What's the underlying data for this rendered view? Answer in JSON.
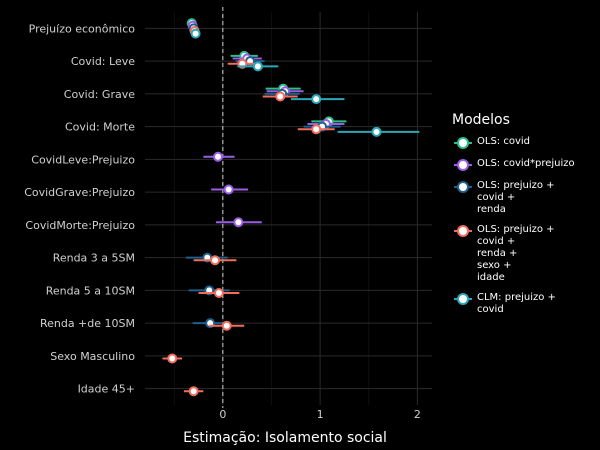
{
  "chart_data": {
    "type": "scatter",
    "subtype": "coefficient-plot",
    "title": "",
    "xlabel": "Estimação: Isolamento social",
    "ylabel": "",
    "xlim": [
      -0.8,
      2.15
    ],
    "xticks": [
      0,
      1,
      2
    ],
    "grid": true,
    "legend_title": "Modelos",
    "legend_position": "right",
    "categories": [
      "Prejuízo econômico",
      "Covid: Leve",
      "Covid: Grave",
      "Covid: Morte",
      "CovidLeve:Prejuizo",
      "CovidGrave:Prejuizo",
      "CovidMorte:Prejuizo",
      "Renda 3 a 5SM",
      "Renda 5 a 10SM",
      "Renda +de 10SM",
      "Sexo Masculino",
      "Idade 45+"
    ],
    "series": [
      {
        "name": "OLS: covid",
        "color": "#2bbf8a",
        "points": [
          {
            "term": "Prejuízo econômico",
            "est": -0.32,
            "lo": -0.36,
            "hi": -0.28
          },
          {
            "term": "Covid: Leve",
            "est": 0.22,
            "lo": 0.08,
            "hi": 0.36
          },
          {
            "term": "Covid: Grave",
            "est": 0.62,
            "lo": 0.44,
            "hi": 0.8
          },
          {
            "term": "Covid: Morte",
            "est": 1.09,
            "lo": 0.91,
            "hi": 1.27
          }
        ]
      },
      {
        "name": "OLS: covid*prejuizo",
        "color": "#9b5de5",
        "points": [
          {
            "term": "Prejuízo econômico",
            "est": -0.31,
            "lo": -0.35,
            "hi": -0.27
          },
          {
            "term": "Covid: Leve",
            "est": 0.25,
            "lo": 0.1,
            "hi": 0.4
          },
          {
            "term": "Covid: Grave",
            "est": 0.64,
            "lo": 0.45,
            "hi": 0.83
          },
          {
            "term": "Covid: Morte",
            "est": 1.06,
            "lo": 0.87,
            "hi": 1.25
          },
          {
            "term": "CovidLeve:Prejuizo",
            "est": -0.05,
            "lo": -0.2,
            "hi": 0.12
          },
          {
            "term": "CovidGrave:Prejuizo",
            "est": 0.06,
            "lo": -0.12,
            "hi": 0.26
          },
          {
            "term": "CovidMorte:Prejuizo",
            "est": 0.16,
            "lo": -0.07,
            "hi": 0.4
          }
        ]
      },
      {
        "name": "OLS: prejuizo +\ncovid +\nrenda",
        "color": "#1e5f8e",
        "points": [
          {
            "term": "Prejuízo econômico",
            "est": -0.3,
            "lo": -0.34,
            "hi": -0.26
          },
          {
            "term": "Covid: Leve",
            "est": 0.28,
            "lo": 0.13,
            "hi": 0.43
          },
          {
            "term": "Covid: Grave",
            "est": 0.61,
            "lo": 0.43,
            "hi": 0.79
          },
          {
            "term": "Covid: Morte",
            "est": 1.02,
            "lo": 0.83,
            "hi": 1.21
          },
          {
            "term": "Renda 3 a 5SM",
            "est": -0.16,
            "lo": -0.38,
            "hi": 0.05
          },
          {
            "term": "Renda 5 a 10SM",
            "est": -0.14,
            "lo": -0.35,
            "hi": 0.07
          },
          {
            "term": "Renda +de 10SM",
            "est": -0.13,
            "lo": -0.31,
            "hi": 0.05
          }
        ]
      },
      {
        "name": "OLS: prejuizo +\ncovid +\nrenda +\nsexo +\nidade",
        "color": "#f26d5b",
        "points": [
          {
            "term": "Prejuízo econômico",
            "est": -0.29,
            "lo": -0.33,
            "hi": -0.25
          },
          {
            "term": "Covid: Leve",
            "est": 0.2,
            "lo": 0.05,
            "hi": 0.35
          },
          {
            "term": "Covid: Grave",
            "est": 0.59,
            "lo": 0.41,
            "hi": 0.77
          },
          {
            "term": "Covid: Morte",
            "est": 0.96,
            "lo": 0.77,
            "hi": 1.15
          },
          {
            "term": "Renda 3 a 5SM",
            "est": -0.08,
            "lo": -0.3,
            "hi": 0.14
          },
          {
            "term": "Renda 5 a 10SM",
            "est": -0.04,
            "lo": -0.25,
            "hi": 0.17
          },
          {
            "term": "Renda +de 10SM",
            "est": 0.04,
            "lo": -0.14,
            "hi": 0.22
          },
          {
            "term": "Sexo Masculino",
            "est": -0.52,
            "lo": -0.62,
            "hi": -0.42
          },
          {
            "term": "Idade 45+",
            "est": -0.3,
            "lo": -0.4,
            "hi": -0.2
          }
        ]
      },
      {
        "name": "CLM: prejuizo +\ncovid",
        "color": "#2aa8b8",
        "points": [
          {
            "term": "Prejuízo econômico",
            "est": -0.28,
            "lo": -0.32,
            "hi": -0.24
          },
          {
            "term": "Covid: Leve",
            "est": 0.36,
            "lo": 0.15,
            "hi": 0.57
          },
          {
            "term": "Covid: Grave",
            "est": 0.96,
            "lo": 0.7,
            "hi": 1.25
          },
          {
            "term": "Covid: Morte",
            "est": 1.58,
            "lo": 1.18,
            "hi": 2.02
          }
        ]
      }
    ]
  }
}
